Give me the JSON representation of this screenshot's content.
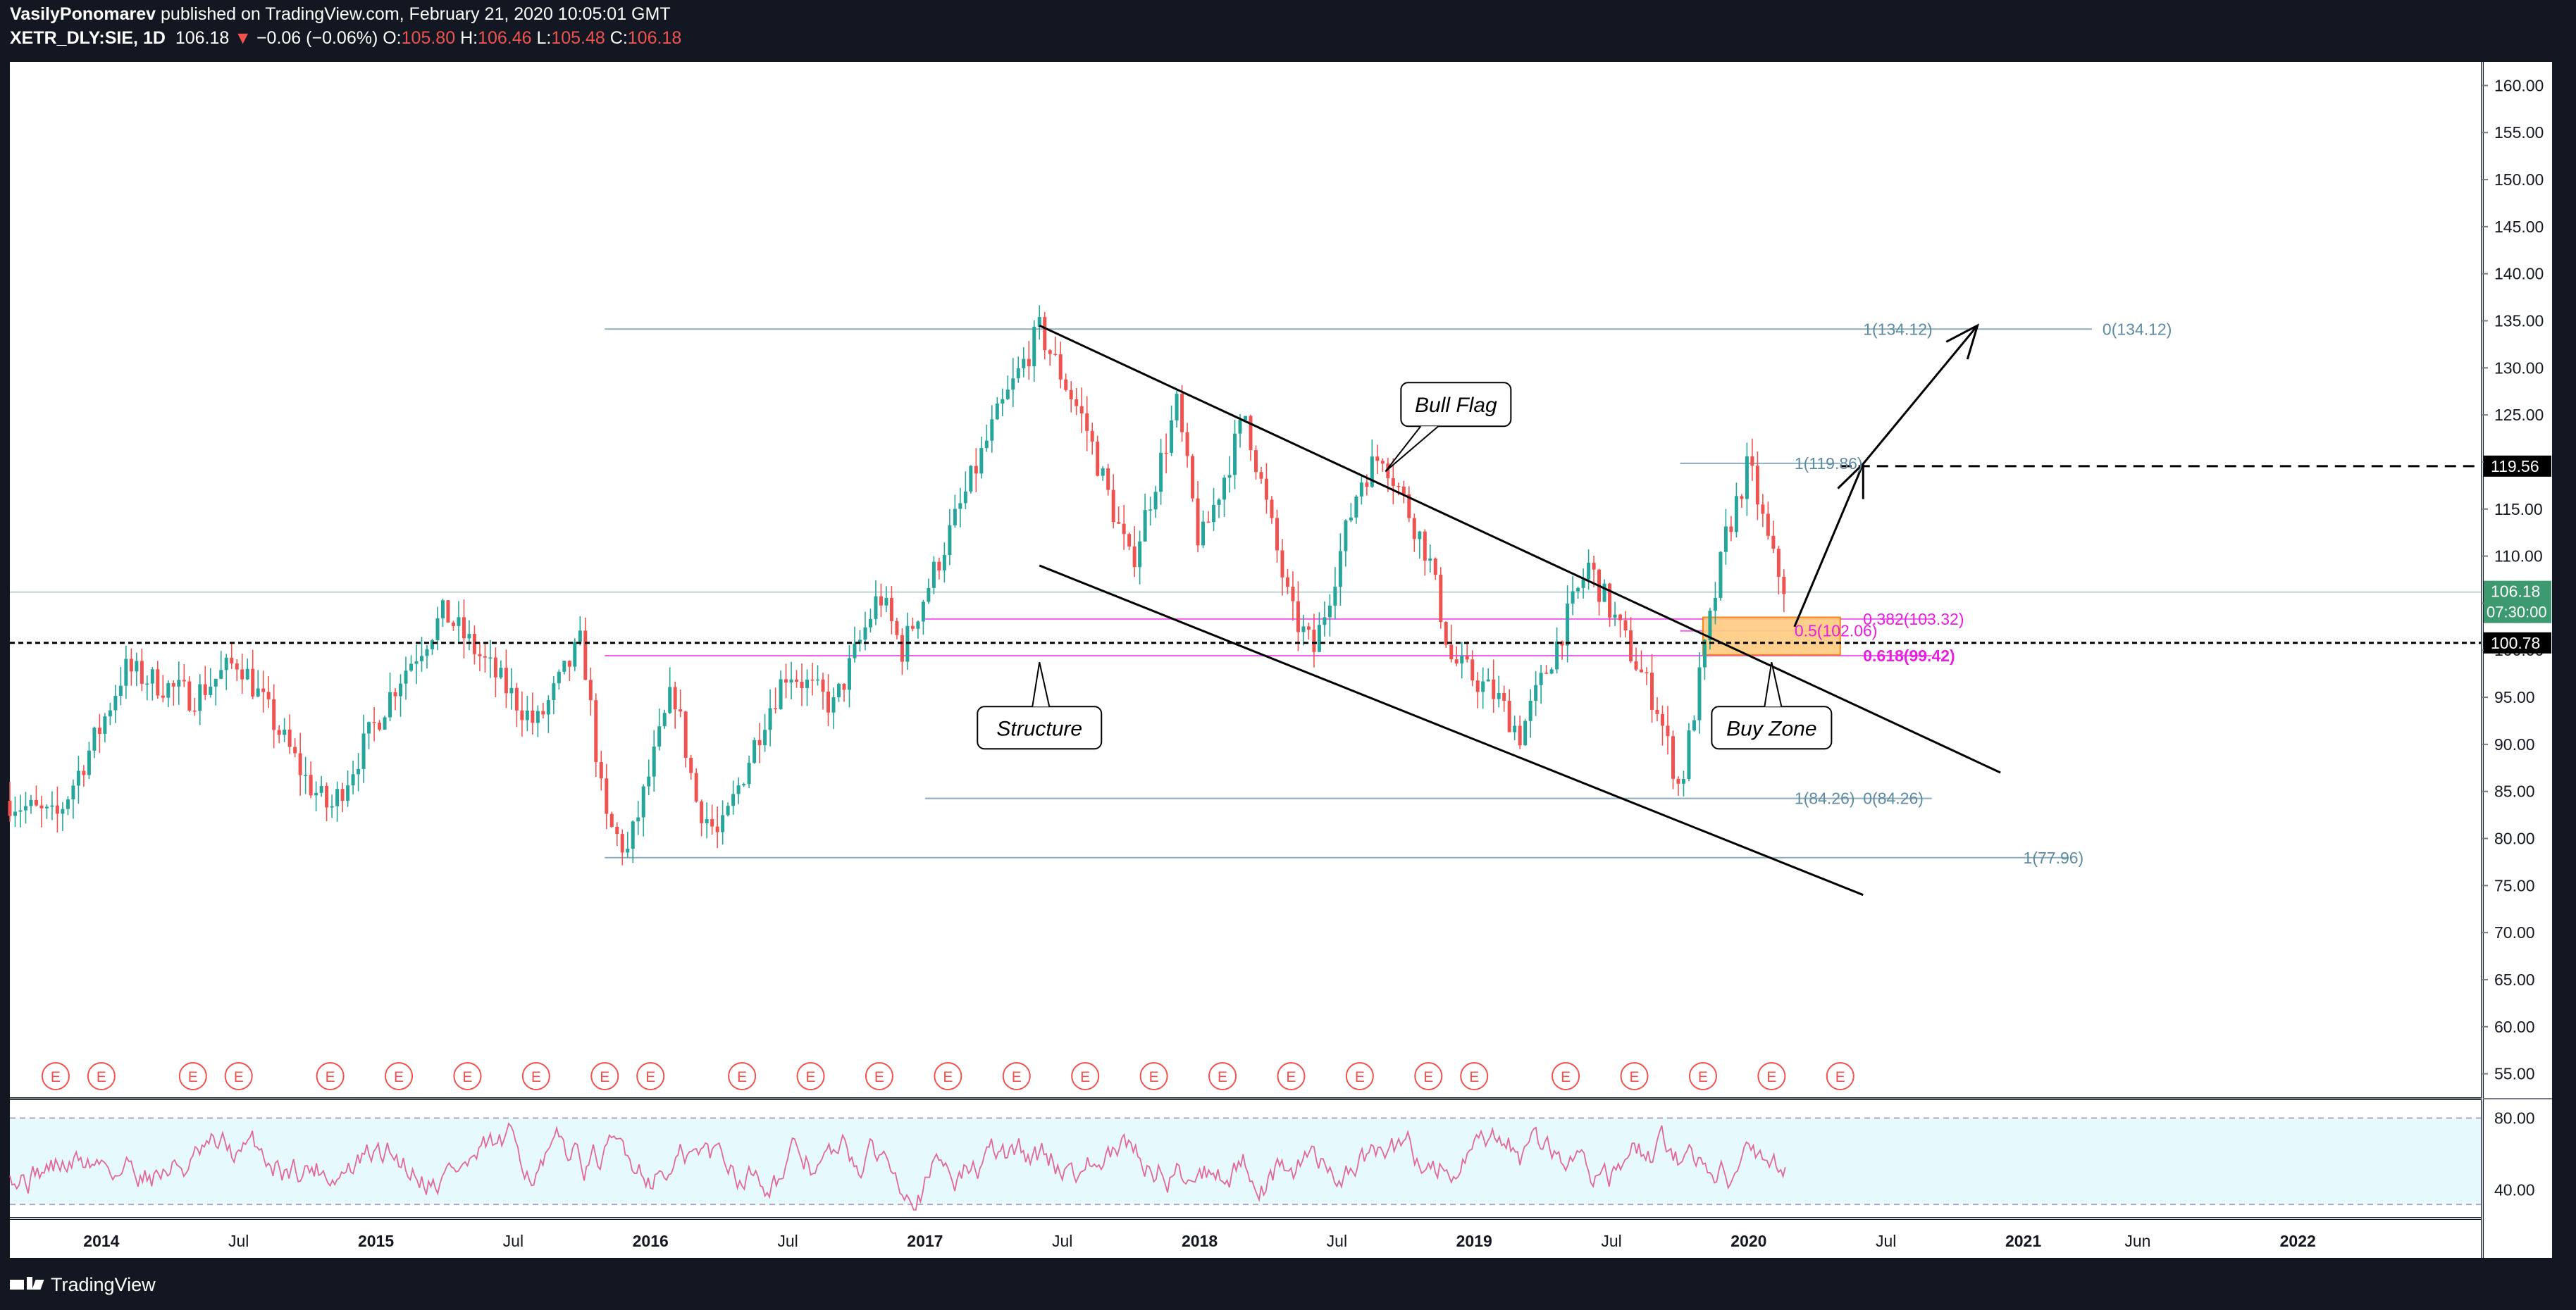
{
  "header": {
    "publisher": "VasilyPonomarev",
    "published_text": "published on TradingView.com, February 21, 2020 10:05:01 GMT",
    "symbol": "XETR_DLY:SIE, 1D",
    "last": "106.18",
    "change_arrow": "▼",
    "change": "−0.06 (−0.06%)",
    "o_label": "O:",
    "o": "105.80",
    "h_label": "H:",
    "h": "106.46",
    "l_label": "L:",
    "l": "105.48",
    "c_label": "C:",
    "c": "106.18"
  },
  "footer": {
    "brand": "TradingView"
  },
  "colors": {
    "background": "#131722",
    "plot": "#ffffff",
    "up": "#26a69a",
    "down": "#ef5350",
    "fib": "#5d8ba0",
    "fib_pink": "#e91ee3",
    "rsi": "#e1679c",
    "rsi_band": "#e6f9fd",
    "buy_zone": "#ffcc80"
  },
  "chart_data": [
    {
      "type": "candlestick",
      "x_range": [
        "2013-09",
        "2022-09"
      ],
      "x_ticks": [
        {
          "label": "2014",
          "date": "2014-01"
        },
        {
          "label": "Jul",
          "date": "2014-07"
        },
        {
          "label": "2015",
          "date": "2015-01"
        },
        {
          "label": "Jul",
          "date": "2015-07"
        },
        {
          "label": "2016",
          "date": "2016-01"
        },
        {
          "label": "Jul",
          "date": "2016-07"
        },
        {
          "label": "2017",
          "date": "2017-01"
        },
        {
          "label": "Jul",
          "date": "2017-07"
        },
        {
          "label": "2018",
          "date": "2018-01"
        },
        {
          "label": "Jul",
          "date": "2018-07"
        },
        {
          "label": "2019",
          "date": "2019-01"
        },
        {
          "label": "Jul",
          "date": "2019-07"
        },
        {
          "label": "2020",
          "date": "2020-01"
        },
        {
          "label": "Jul",
          "date": "2020-07"
        },
        {
          "label": "2021",
          "date": "2021-01"
        },
        {
          "label": "Jun",
          "date": "2021-06"
        },
        {
          "label": "2022",
          "date": "2022-01"
        }
      ],
      "y_range": [
        52.5,
        162.5
      ],
      "y_ticks": [
        "55.00",
        "60.00",
        "65.00",
        "70.00",
        "75.00",
        "80.00",
        "85.00",
        "90.00",
        "95.00",
        "100.00",
        "105.00",
        "110.00",
        "115.00",
        "120.00",
        "125.00",
        "130.00",
        "135.00",
        "140.00",
        "145.00",
        "150.00",
        "155.00",
        "160.00"
      ],
      "price_path": [
        {
          "date": "2013-09",
          "price": 84
        },
        {
          "date": "2013-11",
          "price": 82
        },
        {
          "date": "2014-01",
          "price": 92
        },
        {
          "date": "2014-02",
          "price": 98
        },
        {
          "date": "2014-05",
          "price": 95
        },
        {
          "date": "2014-07",
          "price": 99
        },
        {
          "date": "2014-10",
          "price": 86
        },
        {
          "date": "2014-11",
          "price": 83
        },
        {
          "date": "2015-02",
          "price": 97
        },
        {
          "date": "2015-04",
          "price": 104
        },
        {
          "date": "2015-06",
          "price": 98
        },
        {
          "date": "2015-08",
          "price": 92
        },
        {
          "date": "2015-10",
          "price": 101
        },
        {
          "date": "2015-11",
          "price": 82
        },
        {
          "date": "2015-12",
          "price": 78.5
        },
        {
          "date": "2016-02",
          "price": 96
        },
        {
          "date": "2016-03",
          "price": 84
        },
        {
          "date": "2016-04",
          "price": 80
        },
        {
          "date": "2016-06",
          "price": 93
        },
        {
          "date": "2016-07",
          "price": 98
        },
        {
          "date": "2016-09",
          "price": 94
        },
        {
          "date": "2016-11",
          "price": 106
        },
        {
          "date": "2016-12",
          "price": 100
        },
        {
          "date": "2017-02",
          "price": 112
        },
        {
          "date": "2017-04",
          "price": 124
        },
        {
          "date": "2017-06",
          "price": 134
        },
        {
          "date": "2017-08",
          "price": 124
        },
        {
          "date": "2017-10",
          "price": 109
        },
        {
          "date": "2017-12",
          "price": 126
        },
        {
          "date": "2018-01",
          "price": 111
        },
        {
          "date": "2018-03",
          "price": 125
        },
        {
          "date": "2018-05",
          "price": 104
        },
        {
          "date": "2018-06",
          "price": 100
        },
        {
          "date": "2018-08",
          "price": 118
        },
        {
          "date": "2018-09",
          "price": 121
        },
        {
          "date": "2018-11",
          "price": 110
        },
        {
          "date": "2018-12",
          "price": 99
        },
        {
          "date": "2019-02",
          "price": 95
        },
        {
          "date": "2019-03",
          "price": 91
        },
        {
          "date": "2019-05",
          "price": 103
        },
        {
          "date": "2019-06",
          "price": 109
        },
        {
          "date": "2019-08",
          "price": 99
        },
        {
          "date": "2019-09",
          "price": 94
        },
        {
          "date": "2019-10",
          "price": 85
        },
        {
          "date": "2019-11",
          "price": 99
        },
        {
          "date": "2019-12",
          "price": 112
        },
        {
          "date": "2020-01",
          "price": 119.8
        },
        {
          "date": "2020-02",
          "price": 110
        },
        {
          "date": "2020-02-21",
          "price": 106.18
        }
      ],
      "horizontal_lines": [
        {
          "price": 100.78,
          "style": "dashed",
          "label": "100.78"
        },
        {
          "price": 119.56,
          "style": "dashed",
          "label": "119.56"
        }
      ],
      "current_price": {
        "price": 106.18,
        "label": "106.18",
        "countdown": "07:30:00"
      },
      "fib_levels": [
        {
          "label": "1(134.12)",
          "price": 134.12
        },
        {
          "label": "0(134.12)",
          "price": 134.12
        },
        {
          "label": "1(119.86)",
          "price": 119.86
        },
        {
          "label": "0.382(103.32)",
          "price": 103.32
        },
        {
          "label": "0.5(102.06)",
          "price": 102.06
        },
        {
          "label": "0.618(99.42)",
          "price": 99.42
        },
        {
          "label": "1(84.26)",
          "price": 84.26
        },
        {
          "label": "0(84.26)",
          "price": 84.26
        },
        {
          "label": "1(77.96)",
          "price": 77.96
        }
      ],
      "trendlines": [
        {
          "from": {
            "date": "2017-06",
            "price": 134.5
          },
          "to": {
            "date": "2020-12",
            "price": 87
          }
        },
        {
          "from": {
            "date": "2017-06",
            "price": 109
          },
          "to": {
            "date": "2020-06",
            "price": 74
          }
        }
      ],
      "projection_arrow": [
        {
          "date": "2020-03",
          "price": 102.5
        },
        {
          "date": "2020-06",
          "price": 119.8
        },
        {
          "date": "2020-11",
          "price": 134.5
        }
      ],
      "buy_zone": {
        "date_from": "2019-11",
        "date_to": "2020-05",
        "price_top": 103.5,
        "price_bottom": 99.5
      },
      "annotations": [
        {
          "text": "Bull Flag",
          "date": "2018-09",
          "price": 122
        },
        {
          "text": "Structure",
          "date": "2017-06",
          "price": 98.5
        },
        {
          "text": "Buy Zone",
          "date": "2020-02",
          "price": 98.5
        }
      ],
      "earnings_marker": "E",
      "earnings_dates": [
        "2013-11",
        "2014-01",
        "2014-05",
        "2014-07",
        "2014-11",
        "2015-02",
        "2015-05",
        "2015-08",
        "2015-11",
        "2016-01",
        "2016-05",
        "2016-08",
        "2016-11",
        "2017-02",
        "2017-05",
        "2017-08",
        "2017-11",
        "2018-02",
        "2018-05",
        "2018-08",
        "2018-11",
        "2019-01",
        "2019-05",
        "2019-08",
        "2019-11",
        "2020-02",
        "2020-05"
      ]
    },
    {
      "type": "line",
      "indicator": "RSI",
      "y_range": [
        25,
        90
      ],
      "y_ticks": [
        "40.00",
        "80.00"
      ],
      "band": [
        32,
        80
      ],
      "x_range": [
        "2013-09",
        "2020-02-21"
      ]
    }
  ]
}
